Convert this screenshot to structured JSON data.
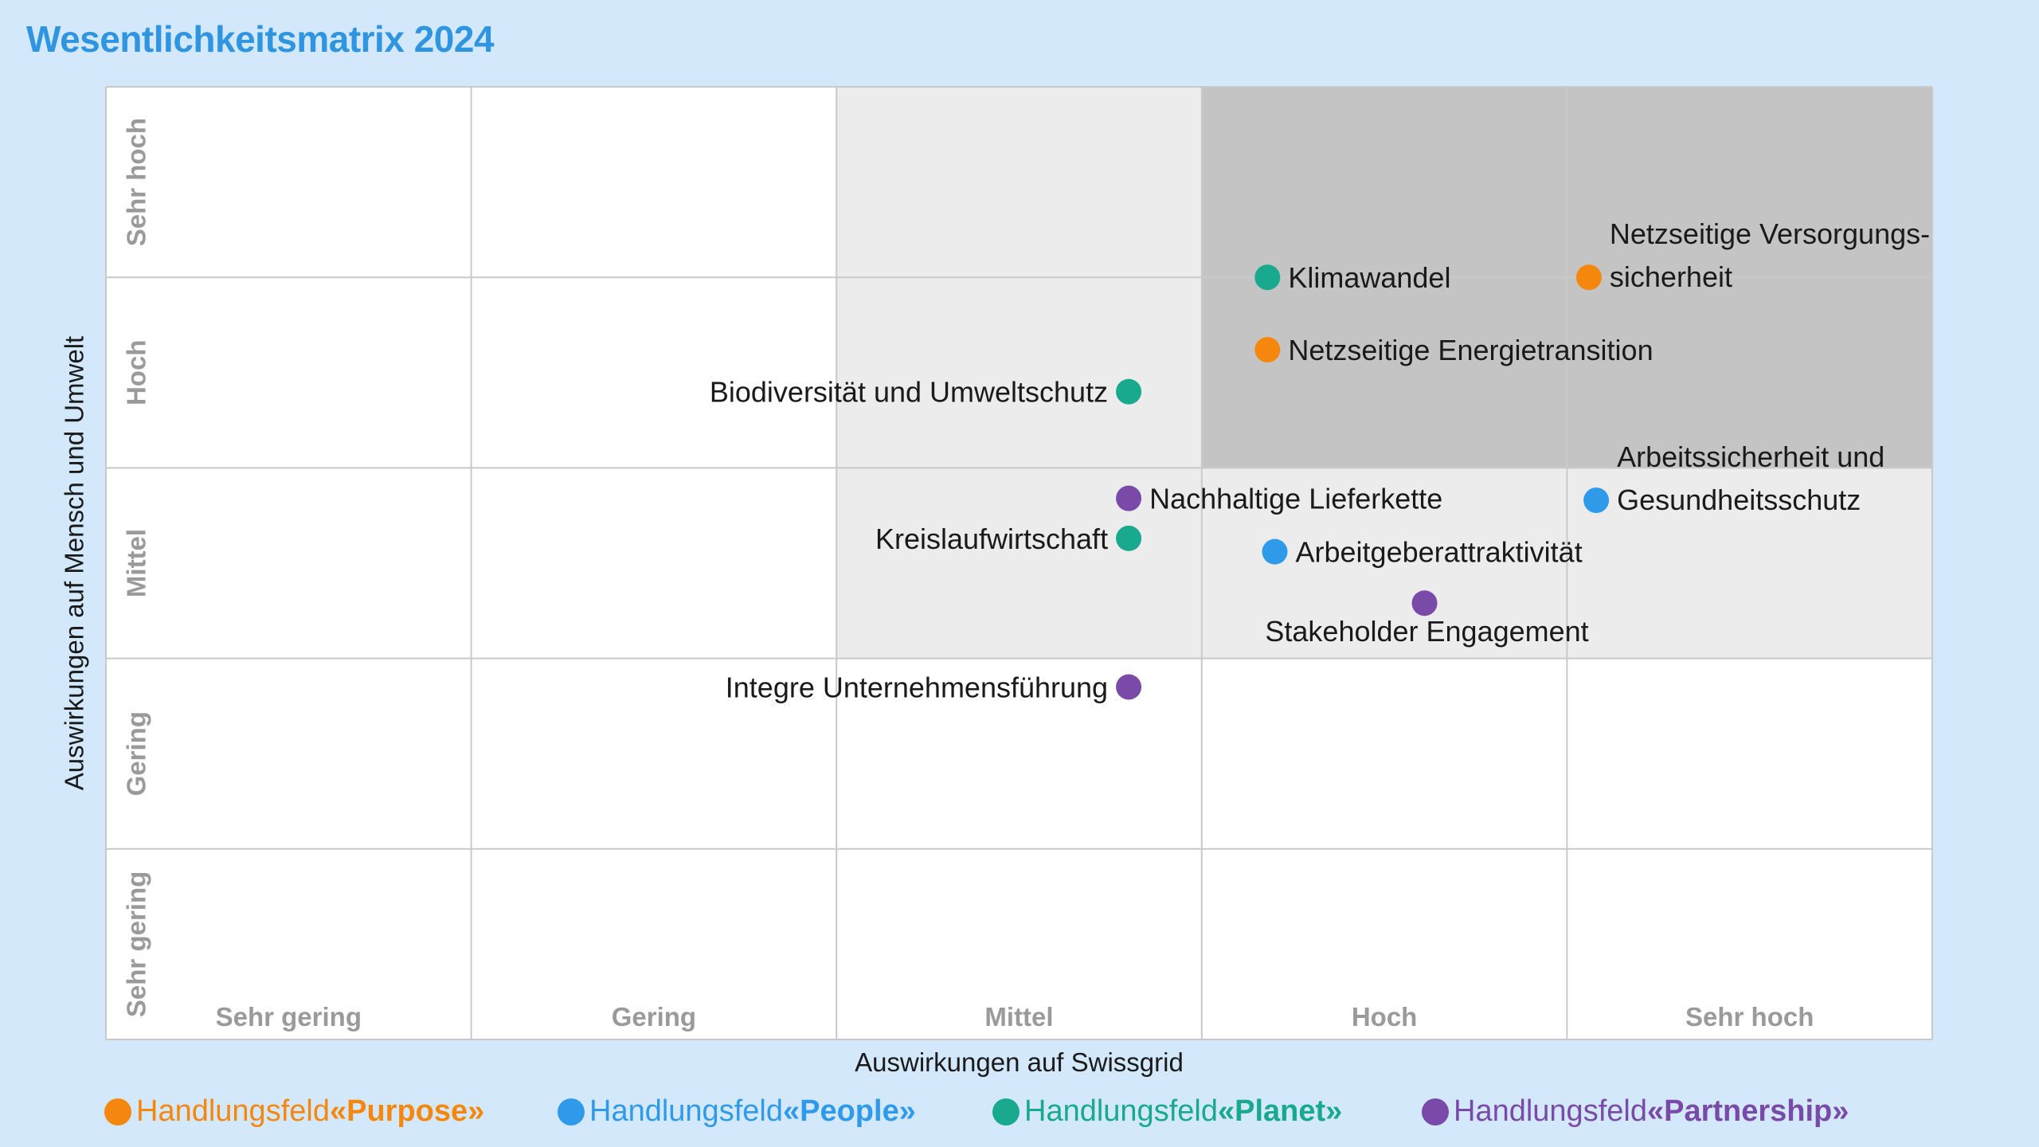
{
  "title": "Wesentlichkeitsmatrix 2024",
  "colors": {
    "purpose": "#f5870f",
    "people": "#2f9aea",
    "planet": "#18a98f",
    "partnership": "#7a4aa8",
    "background": "#d3e9fb",
    "zone_light": "#ececec",
    "zone_dark": "#c4c4c4",
    "grid": "#c9c9c9",
    "tick_text": "#9a9a9a"
  },
  "legend": [
    {
      "key": "purpose",
      "prefix": "Handlungsfeld ",
      "name": "«Purpose»"
    },
    {
      "key": "people",
      "prefix": "Handlungsfeld ",
      "name": "«People»"
    },
    {
      "key": "planet",
      "prefix": "Handlungsfeld ",
      "name": "«Planet»"
    },
    {
      "key": "partnership",
      "prefix": "Handlungsfeld ",
      "name": "«Partnership»"
    }
  ],
  "chart_data": {
    "type": "scatter",
    "title": "Wesentlichkeitsmatrix 2024",
    "xlabel": "Auswirkungen auf Swissgrid",
    "ylabel": "Auswirkungen auf Mensch und Umwelt",
    "x_categories": [
      "Sehr gering",
      "Gering",
      "Mittel",
      "Hoch",
      "Sehr hoch"
    ],
    "y_categories": [
      "Sehr gering",
      "Gering",
      "Mittel",
      "Hoch",
      "Sehr hoch"
    ],
    "xlim": [
      0,
      5
    ],
    "ylim": [
      0,
      5
    ],
    "grid": true,
    "legend_position": "bottom",
    "zones": [
      {
        "shade": "light",
        "x": [
          2,
          5
        ],
        "y": [
          2,
          5
        ]
      },
      {
        "shade": "dark",
        "x": [
          3,
          5
        ],
        "y": [
          3,
          5
        ]
      }
    ],
    "points": [
      {
        "label": [
          "Netzseitige Versorgungs-",
          "sicherheit"
        ],
        "category": "purpose",
        "x": 4.06,
        "y": 4.0,
        "label_side": "right"
      },
      {
        "label": [
          "Klimawandel"
        ],
        "category": "planet",
        "x": 3.18,
        "y": 4.0,
        "label_side": "right"
      },
      {
        "label": [
          "Netzseitige Energietransition"
        ],
        "category": "purpose",
        "x": 3.18,
        "y": 3.62,
        "label_side": "right"
      },
      {
        "label": [
          "Biodiversität und Umweltschutz"
        ],
        "category": "planet",
        "x": 2.8,
        "y": 3.4,
        "label_side": "left"
      },
      {
        "label": [
          "Nachhaltige Lieferkette"
        ],
        "category": "partnership",
        "x": 2.8,
        "y": 2.84,
        "label_side": "right"
      },
      {
        "label": [
          "Kreislaufwirtschaft"
        ],
        "category": "planet",
        "x": 2.8,
        "y": 2.63,
        "label_side": "left"
      },
      {
        "label": [
          "Arbeitgeberattraktivität"
        ],
        "category": "people",
        "x": 3.2,
        "y": 2.56,
        "label_side": "right"
      },
      {
        "label": [
          "Arbeitssicherheit und",
          "Gesundheitsschutz"
        ],
        "category": "people",
        "x": 4.08,
        "y": 2.83,
        "label_side": "right"
      },
      {
        "label": [
          "Stakeholder Engagement"
        ],
        "category": "partnership",
        "x": 3.61,
        "y": 2.29,
        "label_side": "below"
      },
      {
        "label": [
          "Integre Unternehmensführung"
        ],
        "category": "partnership",
        "x": 2.8,
        "y": 1.85,
        "label_side": "left"
      }
    ]
  }
}
